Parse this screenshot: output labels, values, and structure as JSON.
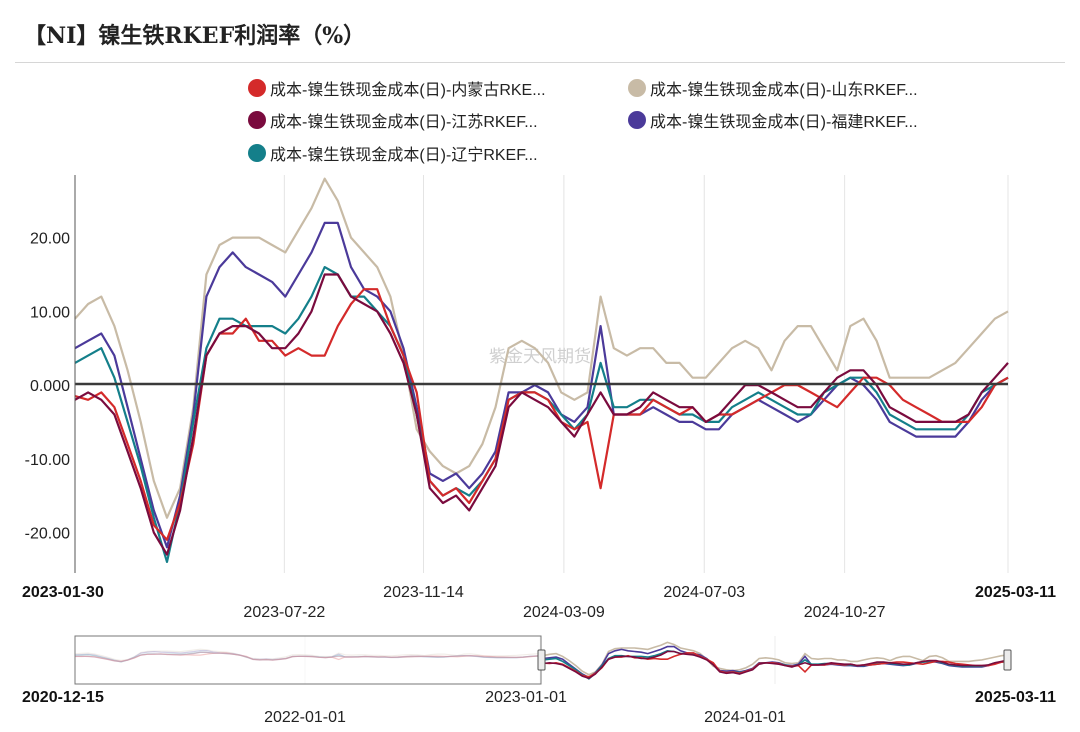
{
  "title": "【NI】镍生铁RKEF利润率（%）",
  "watermark": "紫金天风期货",
  "chart_data": {
    "type": "line",
    "title": "【NI】镍生铁RKEF利润率（%）",
    "xlabel": "",
    "ylabel": "",
    "x_start": "2023-01-30",
    "x_end": "2025-03-11",
    "x_ticks_bold": [
      "2023-01-30",
      "2025-03-11"
    ],
    "x_ticks": [
      "2023-07-22",
      "2023-11-14",
      "2024-03-09",
      "2024-07-03",
      "2024-10-27"
    ],
    "y_ticks": [
      "20.00",
      "10.00",
      "0.000",
      "-10.00",
      "-20.00"
    ],
    "ylim": [
      -25.5,
      28.5
    ],
    "grid": "vertical",
    "legend_position": "top",
    "series": [
      {
        "name": "成本-镍生铁现金成本(日)-内蒙古RKE...",
        "color": "#d42a2a",
        "values": [
          -1.5,
          -2,
          -1,
          -3,
          -8,
          -13,
          -19,
          -21,
          -16,
          -8,
          4,
          7,
          7,
          9,
          6,
          6,
          4,
          5,
          4,
          4,
          8,
          11,
          13,
          13,
          8,
          4,
          -1,
          -13,
          -15,
          -14,
          -16,
          -13,
          -10,
          -2,
          -1,
          -1,
          -2,
          -5,
          -6,
          -5,
          -14,
          -4,
          -4,
          -4,
          -2,
          -3,
          -4,
          -3,
          -5,
          -4,
          -4,
          -3,
          -2,
          -1,
          0,
          0,
          -1,
          -2,
          -3,
          -1,
          1,
          1,
          0,
          -2,
          -3,
          -4,
          -5,
          -5,
          -5,
          -3,
          0,
          1
        ]
      },
      {
        "name": "成本-镍生铁现金成本(日)-山东RKEF...",
        "color": "#c8bba6",
        "values": [
          9,
          11,
          12,
          8,
          2,
          -5,
          -13,
          -18,
          -14,
          -3,
          15,
          19,
          20,
          20,
          20,
          19,
          18,
          21,
          24,
          28,
          25,
          20,
          18,
          16,
          12,
          4,
          -6,
          -9,
          -11,
          -12,
          -11,
          -8,
          -3,
          5,
          6,
          5,
          3,
          -1,
          -2,
          -1,
          12,
          5,
          4,
          5,
          5,
          3,
          3,
          1,
          1,
          3,
          5,
          6,
          5,
          2,
          6,
          8,
          8,
          5,
          2,
          8,
          9,
          6,
          1,
          1,
          1,
          1,
          2,
          3,
          5,
          7,
          9,
          10
        ]
      },
      {
        "name": "成本-镍生铁现金成本(日)-江苏RKEF...",
        "color": "#7a0b3e",
        "values": [
          -2,
          -1,
          -2,
          -4,
          -9,
          -14,
          -20,
          -23,
          -17,
          -7,
          4,
          7,
          8,
          8,
          7,
          5,
          5,
          7,
          10,
          15,
          15,
          12,
          11,
          10,
          7,
          3,
          -4,
          -14,
          -16,
          -15,
          -17,
          -14,
          -11,
          -3,
          -1,
          -2,
          -3,
          -5,
          -7,
          -4,
          -1,
          -4,
          -4,
          -3,
          -1,
          -2,
          -3,
          -3,
          -5,
          -4,
          -2,
          0,
          0,
          -1,
          -2,
          -3,
          -3,
          -1,
          1,
          2,
          2,
          0,
          -3,
          -4,
          -5,
          -5,
          -5,
          -5,
          -4,
          -1,
          1,
          3
        ]
      },
      {
        "name": "成本-镍生铁现金成本(日)-福建RKEF...",
        "color": "#4b3a9a",
        "values": [
          5,
          6,
          7,
          4,
          -3,
          -10,
          -17,
          -22,
          -15,
          -4,
          12,
          16,
          18,
          16,
          15,
          14,
          12,
          15,
          18,
          22,
          22,
          16,
          13,
          12,
          10,
          5,
          -3,
          -12,
          -13,
          -12,
          -14,
          -12,
          -9,
          -1,
          -1,
          0,
          -1,
          -4,
          -5,
          -3,
          8,
          -4,
          -4,
          -4,
          -3,
          -4,
          -5,
          -5,
          -6,
          -6,
          -4,
          -3,
          -2,
          -3,
          -4,
          -5,
          -4,
          -2,
          0,
          1,
          0,
          -2,
          -5,
          -6,
          -7,
          -7,
          -7,
          -7,
          -5,
          -2,
          0,
          1
        ]
      },
      {
        "name": "成本-镍生铁现金成本(日)-辽宁RKEF...",
        "color": "#147f8a",
        "values": [
          3,
          4,
          5,
          1,
          -5,
          -11,
          -18,
          -24,
          -16,
          -5,
          5,
          9,
          9,
          8,
          8,
          8,
          7,
          9,
          12,
          16,
          15,
          12,
          12,
          10,
          8,
          4,
          -4,
          -13,
          -15,
          -14,
          -15,
          -13,
          -10,
          -2,
          -1,
          -1,
          -2,
          -4,
          -6,
          -4,
          3,
          -3,
          -3,
          -2,
          -2,
          -3,
          -4,
          -4,
          -5,
          -5,
          -3,
          -2,
          -1,
          -2,
          -3,
          -4,
          -4,
          -1,
          0,
          1,
          1,
          -1,
          -4,
          -5,
          -6,
          -6,
          -6,
          -6,
          -4,
          -1,
          0,
          1
        ]
      }
    ],
    "navigator": {
      "start": "2020-12-15",
      "end": "2025-03-11",
      "labels_bold": [
        "2020-12-15",
        "2025-03-11"
      ],
      "labels": [
        "2022-01-01",
        "2023-01-01",
        "2024-01-01"
      ]
    }
  }
}
